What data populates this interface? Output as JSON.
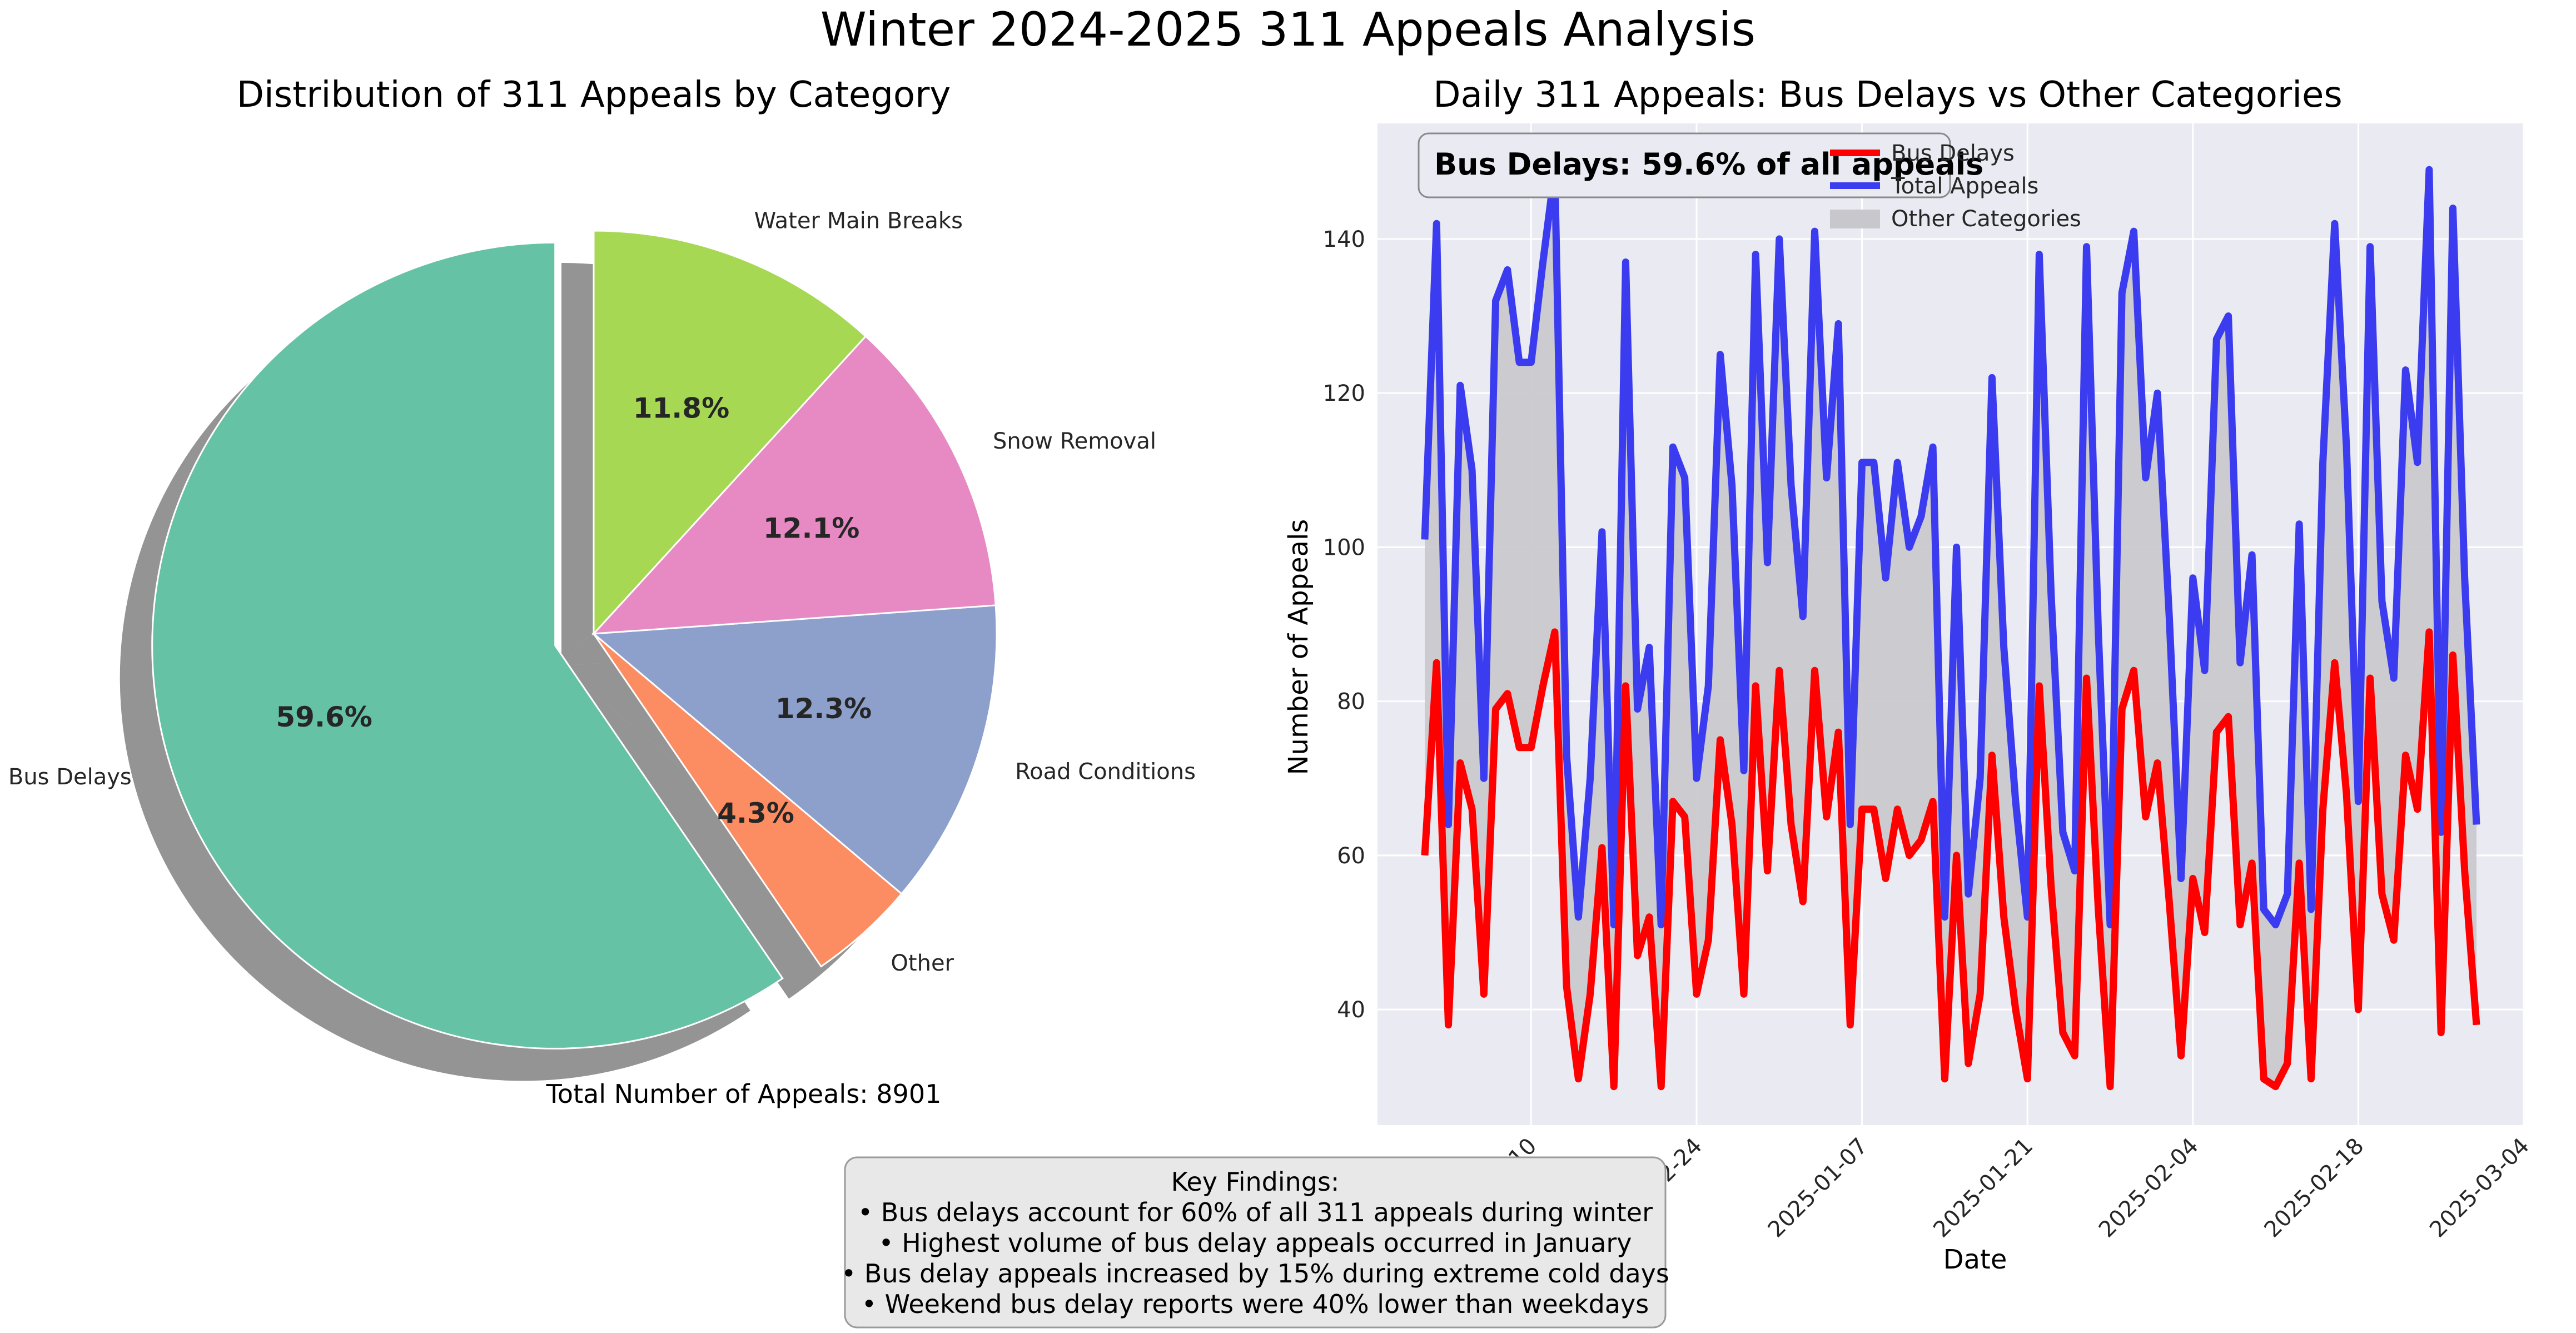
{
  "figure_title": "Winter 2024-2025 311 Appeals Analysis",
  "total_text": "Total Number of Appeals: 8901",
  "findings_box": {
    "title": "Key Findings:",
    "lines": [
      "• Bus delays account for 60% of all 311 appeals during winter",
      "• Highest volume of bus delay appeals occurred in January",
      "• Bus delay appeals increased by 15% during extreme cold days",
      "• Weekend bus delay reports were 40% lower than weekdays"
    ]
  },
  "colors": {
    "bus_delays": "#ff0000",
    "total_appeals": "#3b3bf0",
    "other_fill": "#c8c8cc",
    "plot_bg": "#eaeaf2"
  },
  "chart_data": [
    {
      "type": "pie",
      "title": "Distribution of 311 Appeals by Category",
      "slices": [
        {
          "label": "Bus Delays",
          "value": 59.6,
          "pct_label": "59.6%",
          "color": "#66c2a5",
          "exploded": true
        },
        {
          "label": "Other",
          "value": 4.3,
          "pct_label": "4.3%",
          "color": "#fc8d62",
          "exploded": false
        },
        {
          "label": "Road Conditions",
          "value": 12.3,
          "pct_label": "12.3%",
          "color": "#8da0cb",
          "exploded": false
        },
        {
          "label": "Snow Removal",
          "value": 12.1,
          "pct_label": "12.1%",
          "color": "#e78ac3",
          "exploded": false
        },
        {
          "label": "Water Main Breaks",
          "value": 11.8,
          "pct_label": "11.8%",
          "color": "#a6d854",
          "exploded": false
        }
      ],
      "start_angle": 90,
      "direction": "counterclockwise",
      "shadow": true
    },
    {
      "type": "line",
      "title": "Daily 311 Appeals: Bus Delays vs Other Categories",
      "xlabel": "Date",
      "ylabel": "Number of Appeals",
      "x_start": "2024-12-01",
      "x_end": "2025-03-01",
      "xlim": [
        "2024-11-27",
        "2025-03-04"
      ],
      "ylim": [
        25,
        155
      ],
      "x_ticks": [
        "2024-12-10",
        "2024-12-24",
        "2025-01-07",
        "2025-01-21",
        "2025-02-04",
        "2025-02-18",
        "2025-03-04"
      ],
      "y_ticks": [
        40,
        60,
        80,
        100,
        120,
        140
      ],
      "grid": true,
      "annotation": "Bus Delays: 59.6% of all appeals",
      "legend": {
        "position": "top-right",
        "entries": [
          "Bus Delays",
          "Total Appeals",
          "Other Categories"
        ]
      },
      "series": [
        {
          "name": "Bus Delays",
          "values": [
            60,
            85,
            38,
            72,
            66,
            42,
            79,
            81,
            74,
            74,
            82,
            89,
            43,
            31,
            42,
            61,
            30,
            82,
            47,
            52,
            30,
            67,
            65,
            42,
            49,
            75,
            64,
            42,
            82,
            58,
            84,
            64,
            54,
            84,
            65,
            76,
            38,
            66,
            66,
            57,
            66,
            60,
            62,
            67,
            31,
            60,
            33,
            42,
            73,
            52,
            40,
            31,
            82,
            56,
            37,
            34,
            83,
            53,
            30,
            79,
            84,
            65,
            72,
            54,
            34,
            57,
            50,
            76,
            78,
            51,
            59,
            31,
            30,
            33,
            59,
            31,
            66,
            85,
            68,
            40,
            83,
            55,
            49,
            73,
            66,
            89,
            37,
            86,
            58,
            38
          ]
        },
        {
          "name": "Total Appeals",
          "values": [
            101,
            142,
            64,
            121,
            110,
            70,
            132,
            136,
            124,
            124,
            137,
            149,
            73,
            52,
            70,
            102,
            51,
            137,
            79,
            87,
            51,
            113,
            109,
            70,
            82,
            125,
            108,
            71,
            138,
            98,
            140,
            108,
            91,
            141,
            109,
            129,
            64,
            111,
            111,
            96,
            111,
            100,
            104,
            113,
            52,
            100,
            55,
            70,
            122,
            87,
            67,
            52,
            138,
            94,
            63,
            58,
            139,
            89,
            51,
            133,
            141,
            109,
            120,
            91,
            57,
            96,
            84,
            127,
            130,
            85,
            99,
            53,
            51,
            55,
            103,
            53,
            111,
            142,
            113,
            67,
            139,
            93,
            83,
            123,
            111,
            149,
            63,
            144,
            96,
            64
          ]
        }
      ]
    }
  ]
}
